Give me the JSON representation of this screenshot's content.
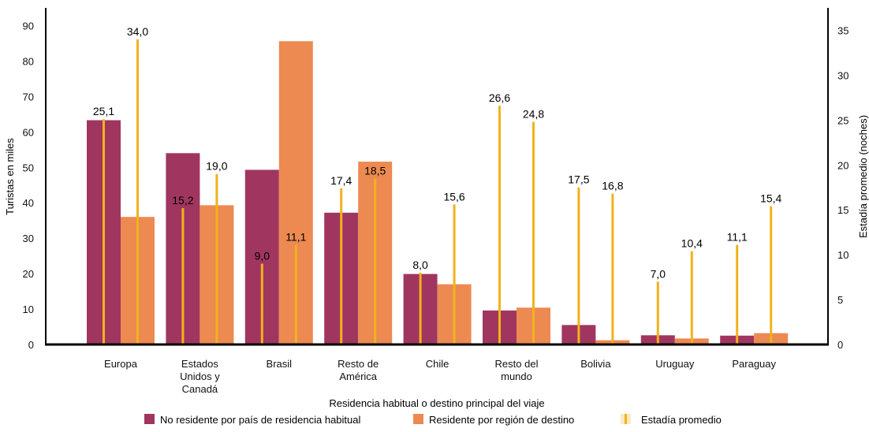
{
  "chart_data": {
    "type": "bar",
    "title": "",
    "xlabel": "Residencia habitual o destino principal del viaje",
    "ylabel": "Turistas en miles",
    "y2label": "Estadía promedio (noches)",
    "ylim": [
      0,
      95
    ],
    "y2lim": [
      0,
      37.5
    ],
    "yticks": [
      "0",
      "10",
      "20",
      "30",
      "40",
      "50",
      "60",
      "70",
      "80",
      "90"
    ],
    "y2ticks": [
      "0",
      "5",
      "10",
      "15",
      "20",
      "25",
      "30",
      "35"
    ],
    "categories": [
      [
        "Europa"
      ],
      [
        "Estados",
        "Unidos y",
        "Canadá"
      ],
      [
        "Brasil"
      ],
      [
        "Resto de",
        "América"
      ],
      [
        "Chile"
      ],
      [
        "Resto del",
        "mundo"
      ],
      [
        "Bolivia"
      ],
      [
        "Uruguay"
      ],
      [
        "Paraguay"
      ]
    ],
    "series": [
      {
        "name": "No residente por país de residencia habitual",
        "type": "bar",
        "axis": "left",
        "color": "#a0365f",
        "values": [
          63.3,
          54.0,
          49.3,
          37.2,
          19.9,
          9.6,
          5.5,
          2.6,
          2.5
        ]
      },
      {
        "name": "Residente por región de destino",
        "type": "bar",
        "axis": "left",
        "color": "#ec8a51",
        "values": [
          36.0,
          39.3,
          85.6,
          51.6,
          17.0,
          10.4,
          1.2,
          1.7,
          3.2
        ]
      },
      {
        "name": "Estadía promedio",
        "type": "line-marker",
        "axis": "right",
        "color": "#f1b21c",
        "values_no_residente": [
          25.1,
          15.2,
          9.0,
          17.4,
          8.0,
          26.6,
          17.5,
          7.0,
          11.1
        ],
        "values_residente": [
          34.0,
          19.0,
          11.1,
          18.5,
          15.6,
          24.8,
          16.8,
          10.4,
          15.4
        ],
        "labels_no_residente": [
          "25,1",
          "15,2",
          "9,0",
          "17,4",
          "8,0",
          "26,6",
          "17,5",
          "7,0",
          "11,1"
        ],
        "labels_residente": [
          "34,0",
          "19,0",
          "11,1",
          "18,5",
          "15,6",
          "24,8",
          "16,8",
          "10,4",
          "15,4"
        ]
      }
    ],
    "legend": [
      {
        "label": "No residente por país de residencia habitual",
        "color": "#a0365f",
        "kind": "box"
      },
      {
        "label": "Residente por región de destino",
        "color": "#ec8a51",
        "kind": "box"
      },
      {
        "label": "Estadía promedio",
        "color": "#f1b21c",
        "kind": "line"
      }
    ],
    "legend_position": "bottom-center",
    "grid": false
  }
}
